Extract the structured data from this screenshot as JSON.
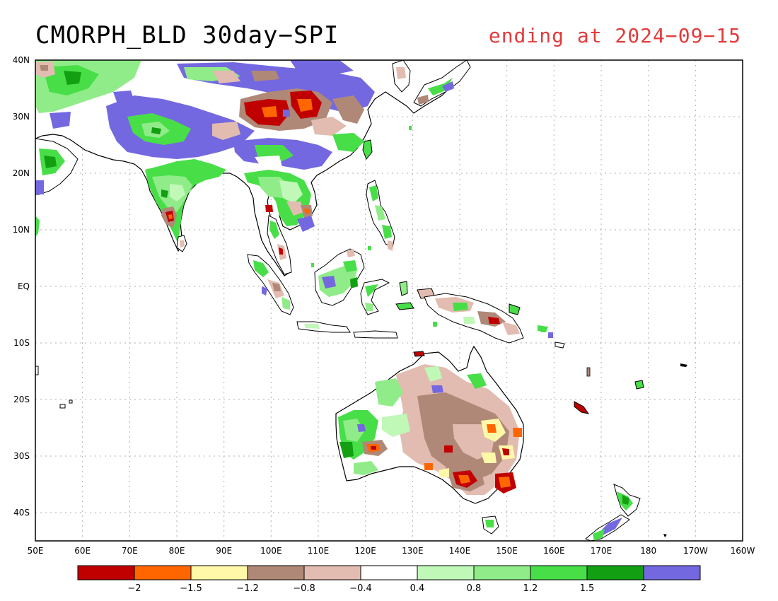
{
  "title": "CMORPH_BLD 30day−SPI",
  "subtitle": "ending at 2024−09−15",
  "map": {
    "lon_labels": [
      "50E",
      "60E",
      "70E",
      "80E",
      "90E",
      "100E",
      "110E",
      "120E",
      "130E",
      "140E",
      "150E",
      "160E",
      "170E",
      "180",
      "170W",
      "160W"
    ],
    "lat_labels": [
      "40N",
      "30N",
      "20N",
      "10N",
      "EQ",
      "10S",
      "20S",
      "30S",
      "40S"
    ]
  },
  "legend": {
    "labels": [
      "−2",
      "−1.5",
      "−1.2",
      "−0.8",
      "−0.4",
      "0.4",
      "0.8",
      "1.2",
      "1.5",
      "2"
    ],
    "colors": [
      "#c00000",
      "#ff6600",
      "#fff8a8",
      "#b08878",
      "#e2bcb0",
      "#ffffff",
      "#c0f8b8",
      "#90ec88",
      "#48de48",
      "#12a012",
      "#7468e0"
    ]
  }
}
